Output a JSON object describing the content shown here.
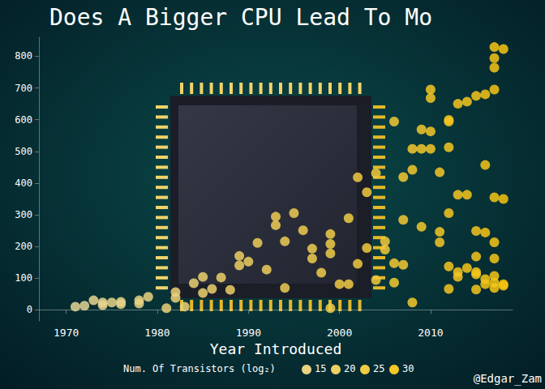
{
  "chart_data": {
    "type": "scatter",
    "title": "Does A Bigger CPU Lead To Mo",
    "x_label": "Year Introduced",
    "x": [
      1971,
      1972,
      1973,
      1974,
      1974,
      1975,
      1976,
      1976,
      1978,
      1978,
      1979,
      1981,
      1982,
      1982,
      1983,
      1984,
      1985,
      1985,
      1986,
      1987,
      1988,
      1989,
      1989,
      1990,
      1991,
      1992,
      1993,
      1993,
      1994,
      1994,
      1995,
      1996,
      1997,
      1997,
      1998,
      1999,
      1999,
      1999,
      1999,
      2000,
      2001,
      2001,
      2002,
      2002,
      2003,
      2003,
      2004,
      2004,
      2005,
      2005,
      2006,
      2006,
      2006,
      2007,
      2007,
      2007,
      2008,
      2008,
      2008,
      2009,
      2009,
      2009,
      2010,
      2010,
      2010,
      2010,
      2011,
      2011,
      2011,
      2012,
      2012,
      2012,
      2012,
      2012,
      2012,
      2013,
      2013,
      2013,
      2013,
      2014,
      2014,
      2014,
      2015,
      2015,
      2015,
      2015,
      2015,
      2015,
      2016,
      2016,
      2016,
      2016,
      2016,
      2017,
      2017,
      2017,
      2017,
      2017,
      2017,
      2017,
      2017,
      2017,
      2017,
      2018,
      2018,
      2018,
      2018
    ],
    "values": [
      10,
      13,
      30,
      15,
      23,
      23,
      25,
      18,
      30,
      20,
      41,
      5,
      56,
      38,
      10,
      84,
      104,
      53,
      66,
      102,
      63,
      140,
      170,
      152,
      211,
      127,
      294,
      267,
      216,
      69,
      305,
      251,
      162,
      193,
      117,
      239,
      208,
      178,
      5,
      81,
      81,
      289,
      418,
      145,
      371,
      195,
      94,
      431,
      216,
      190,
      594,
      86,
      147,
      419,
      284,
      142,
      508,
      23,
      442,
      508,
      262,
      569,
      695,
      668,
      508,
      563,
      434,
      246,
      213,
      513,
      305,
      594,
      599,
      137,
      66,
      650,
      363,
      119,
      104,
      657,
      363,
      132,
      675,
      249,
      119,
      112,
      168,
      64,
      680,
      457,
      244,
      97,
      81,
      829,
      794,
      764,
      695,
      355,
      213,
      162,
      107,
      69,
      86,
      823,
      350,
      81,
      76
    ],
    "transistors_log2": [
      11,
      11,
      12,
      12,
      12,
      13,
      13,
      13,
      14,
      14,
      15,
      16,
      16,
      16,
      17,
      17,
      18,
      18,
      18,
      19,
      19,
      20,
      20,
      20,
      21,
      21,
      22,
      22,
      22,
      22,
      22,
      23,
      23,
      23,
      24,
      24,
      24,
      24,
      24,
      25,
      25,
      25,
      26,
      26,
      26,
      26,
      27,
      27,
      27,
      27,
      28,
      28,
      28,
      28,
      28,
      28,
      29,
      29,
      29,
      29,
      29,
      29,
      30,
      30,
      30,
      30,
      30,
      30,
      30,
      31,
      31,
      31,
      31,
      31,
      31,
      31,
      31,
      31,
      31,
      32,
      32,
      32,
      32,
      32,
      32,
      32,
      32,
      32,
      33,
      33,
      33,
      33,
      33,
      33,
      33,
      33,
      33,
      33,
      33,
      33,
      33,
      33,
      33,
      34,
      34,
      34,
      34
    ],
    "xlim": [
      1967,
      2019
    ],
    "xticks": [
      1970,
      1980,
      1990,
      2000,
      2010
    ],
    "ylim": [
      -35,
      860
    ],
    "yticks": [
      0,
      100,
      200,
      300,
      400,
      500,
      600,
      700,
      800
    ],
    "color_bar": {
      "title": "Num. Of Transistors (log₂)",
      "ticks": [
        15,
        20,
        25,
        30
      ]
    },
    "annotations": [
      "@Edgar_Zam"
    ],
    "grid": false
  }
}
